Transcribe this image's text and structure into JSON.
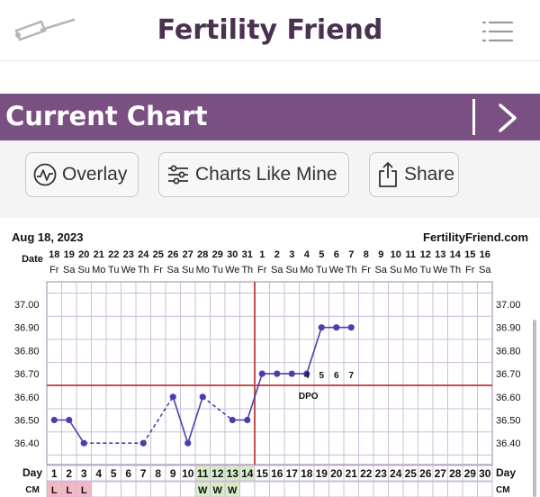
{
  "header": {
    "app_title": "Fertility Friend",
    "logo_icon": "thermometer-icon",
    "menu_icon": "hamburger-menu-icon"
  },
  "section": {
    "title": "Current Chart",
    "next_icon": "chevron-right-icon"
  },
  "toolbar": {
    "overlay_label": "Overlay",
    "charts_like_mine_label": "Charts Like Mine",
    "share_label": "Share",
    "overlay_icon": "pulse-chart-icon",
    "charts_icon": "sliders-icon",
    "share_icon": "share-icon"
  },
  "colors": {
    "brand": "#7a4f82",
    "title_text": "#4a3150",
    "line": "#4b3fb0",
    "coverline": "#c0504d",
    "fertile": "#d7ecc8",
    "menses": "#f2b8c6"
  },
  "chart": {
    "start_date": "Aug 18, 2023",
    "site": "FertilityFriend.com",
    "date_label": "Date",
    "dates": [
      "18",
      "19",
      "20",
      "21",
      "22",
      "23",
      "24",
      "25",
      "26",
      "27",
      "28",
      "29",
      "30",
      "31",
      "1",
      "2",
      "3",
      "4",
      "5",
      "6",
      "7",
      "8",
      "9",
      "10",
      "11",
      "12",
      "13",
      "14",
      "15",
      "16"
    ],
    "weekdays": [
      "Fr",
      "Sa",
      "Su",
      "Mo",
      "Tu",
      "We",
      "Th",
      "Fr",
      "Sa",
      "Su",
      "Mo",
      "Tu",
      "We",
      "Th",
      "Fr",
      "Sa",
      "Su",
      "Mo",
      "Tu",
      "We",
      "Th",
      "Fr",
      "Sa",
      "Su",
      "Mo",
      "Tu",
      "We",
      "Th",
      "Fr",
      "Sa"
    ],
    "y_ticks": [
      "37.00",
      "36.90",
      "36.80",
      "36.70",
      "36.60",
      "36.50",
      "36.40"
    ],
    "temps": [
      36.5,
      36.5,
      36.4,
      null,
      null,
      null,
      36.4,
      null,
      36.6,
      36.4,
      36.6,
      null,
      36.5,
      36.5,
      36.7,
      36.7,
      36.7,
      36.7,
      36.9,
      36.9,
      36.9
    ],
    "dashed_segments": [
      [
        3,
        7
      ],
      [
        8,
        9
      ],
      [
        11,
        13
      ]
    ],
    "coverline": 36.65,
    "ovulation_day": 14,
    "dpo_label": "DPO",
    "dpo_numbers": [
      "4",
      "5",
      "6",
      "7"
    ],
    "day_label": "Day",
    "days": [
      "1",
      "2",
      "3",
      "4",
      "5",
      "6",
      "7",
      "8",
      "9",
      "10",
      "11",
      "12",
      "13",
      "14",
      "15",
      "16",
      "17",
      "18",
      "19",
      "20",
      "21",
      "22",
      "23",
      "24",
      "25",
      "26",
      "27",
      "28",
      "29",
      "30"
    ],
    "cm_label": "CM",
    "cm": [
      "L",
      "L",
      "L",
      "",
      "",
      "",
      "",
      "",
      "",
      "",
      "W",
      "W",
      "W",
      "",
      "",
      "",
      "",
      "",
      "",
      "",
      "",
      "",
      "",
      "",
      "",
      "",
      "",
      "",
      "",
      ""
    ],
    "fertile_days": [
      11,
      12,
      13,
      14
    ]
  }
}
